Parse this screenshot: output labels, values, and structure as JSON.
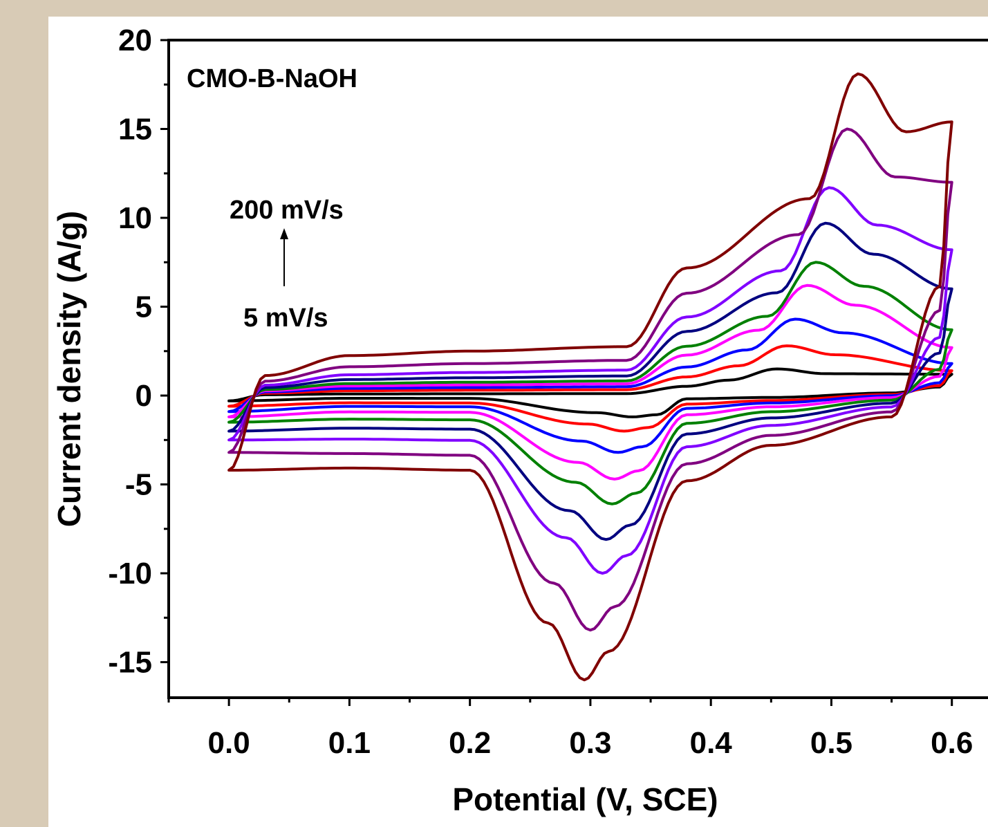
{
  "chart_data": {
    "type": "line",
    "title": "",
    "xlabel": "Potential (V, SCE)",
    "ylabel": "Current density (A/g)",
    "xlim": [
      -0.05,
      0.63
    ],
    "ylim": [
      -17,
      20
    ],
    "xticks": [
      0.0,
      0.1,
      0.2,
      0.3,
      0.4,
      0.5,
      0.6
    ],
    "xtick_labels": [
      "0.0",
      "0.1",
      "0.2",
      "0.3",
      "0.4",
      "0.5",
      "0.6"
    ],
    "yticks": [
      -15,
      -10,
      -5,
      0,
      5,
      10,
      15,
      20
    ],
    "ytick_labels": [
      "-15",
      "-10",
      "-5",
      "0",
      "5",
      "10",
      "15",
      "20"
    ],
    "grid": false,
    "legend": "none",
    "annotations": {
      "sample": "CMO-B-NaOH",
      "scan_high": "200 mV/s",
      "scan_low": "5 mV/s"
    },
    "series": [
      {
        "color": "#000000",
        "anodic_peak": [
          0.455,
          1.5
        ],
        "cathodic_peak": [
          0.335,
          -1.2
        ],
        "upper_base": 0.1,
        "lower_base": -0.15,
        "end_current": 1.2,
        "start_current": -0.3
      },
      {
        "color": "#ff0000",
        "anodic_peak": [
          0.463,
          2.8
        ],
        "cathodic_peak": [
          0.328,
          -2.0
        ],
        "upper_base": 0.3,
        "lower_base": -0.4,
        "end_current": 1.4,
        "start_current": -0.6
      },
      {
        "color": "#0000ff",
        "anodic_peak": [
          0.47,
          4.3
        ],
        "cathodic_peak": [
          0.323,
          -3.2
        ],
        "upper_base": 0.45,
        "lower_base": -0.6,
        "end_current": 1.8,
        "start_current": -0.9
      },
      {
        "color": "#ff00ff",
        "anodic_peak": [
          0.48,
          6.2
        ],
        "cathodic_peak": [
          0.32,
          -4.7
        ],
        "upper_base": 0.6,
        "lower_base": -0.9,
        "end_current": 2.7,
        "start_current": -1.2
      },
      {
        "color": "#008000",
        "anodic_peak": [
          0.487,
          7.5
        ],
        "cathodic_peak": [
          0.318,
          -6.1
        ],
        "upper_base": 0.75,
        "lower_base": -1.3,
        "end_current": 3.7,
        "start_current": -1.5
      },
      {
        "color": "#000080",
        "anodic_peak": [
          0.495,
          9.7
        ],
        "cathodic_peak": [
          0.313,
          -8.1
        ],
        "upper_base": 1.0,
        "lower_base": -1.8,
        "end_current": 6.0,
        "start_current": -2.0
      },
      {
        "color": "#8000ff",
        "anodic_peak": [
          0.498,
          11.7
        ],
        "cathodic_peak": [
          0.31,
          -10.0
        ],
        "upper_base": 1.3,
        "lower_base": -2.4,
        "end_current": 8.2,
        "start_current": -2.5
      },
      {
        "color": "#800080",
        "anodic_peak": [
          0.513,
          15.0
        ],
        "cathodic_peak": [
          0.3,
          -13.2
        ],
        "upper_base": 1.8,
        "lower_base": -3.2,
        "end_current": 12.0,
        "start_current": -3.2
      },
      {
        "color": "#800000",
        "anodic_peak": [
          0.522,
          18.1
        ],
        "cathodic_peak": [
          0.295,
          -16.0
        ],
        "upper_base": 2.5,
        "lower_base": -4.0,
        "end_current": 15.4,
        "start_current": -4.2
      }
    ]
  }
}
